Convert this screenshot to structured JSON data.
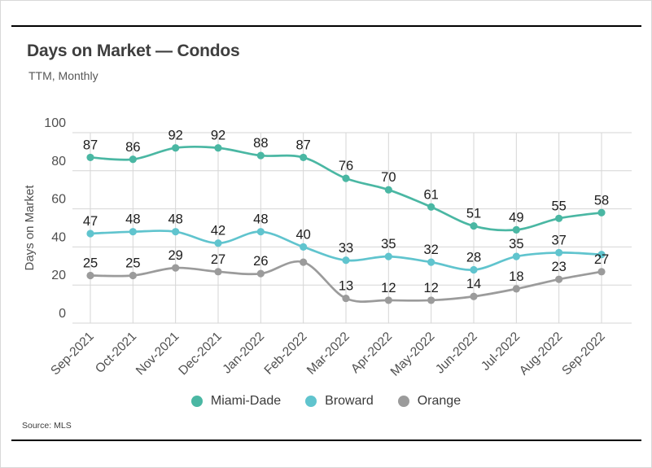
{
  "page": {
    "source": "Source:  MLS"
  },
  "chart_data": {
    "type": "line",
    "title": "Days on Market — Condos",
    "subtitle": "TTM, Monthly",
    "ylabel": "Days on Market",
    "xlabel": "",
    "ylim": [
      0,
      100
    ],
    "yticks": [
      0,
      20,
      40,
      60,
      80,
      100
    ],
    "grid": true,
    "legend_position": "bottom",
    "categories": [
      "Sep-2021",
      "Oct-2021",
      "Nov-2021",
      "Dec-2021",
      "Jan-2022",
      "Feb-2022",
      "Mar-2022",
      "Apr-2022",
      "May-2022",
      "Jun-2022",
      "Jul-2022",
      "Aug-2022",
      "Sep-2022"
    ],
    "series": [
      {
        "name": "Miami-Dade",
        "color": "#4ab7a3",
        "values": [
          87,
          86,
          92,
          92,
          88,
          87,
          76,
          70,
          61,
          51,
          49,
          55,
          58
        ],
        "unlabeled_points": []
      },
      {
        "name": "Broward",
        "color": "#60c4ce",
        "values": [
          47,
          48,
          48,
          42,
          48,
          40,
          33,
          35,
          32,
          28,
          35,
          37,
          36
        ],
        "unlabeled_points": [
          12
        ],
        "note": "value at Sep-2022 estimated from gridlines; its numeric label is not shown in the chart"
      },
      {
        "name": "Orange",
        "color": "#9b9b9b",
        "values": [
          25,
          25,
          29,
          27,
          26,
          32,
          13,
          12,
          12,
          14,
          18,
          23,
          27
        ],
        "unlabeled_points": [
          5
        ],
        "note": "value at Feb-2022 estimated from gridlines; its numeric label is not shown in the chart"
      }
    ]
  },
  "style": {
    "grid_color": "#d6d6d6",
    "axis_text_color": "#4f4f4f",
    "data_label_color": "#1c1c1c",
    "rule_color": "#000000"
  }
}
